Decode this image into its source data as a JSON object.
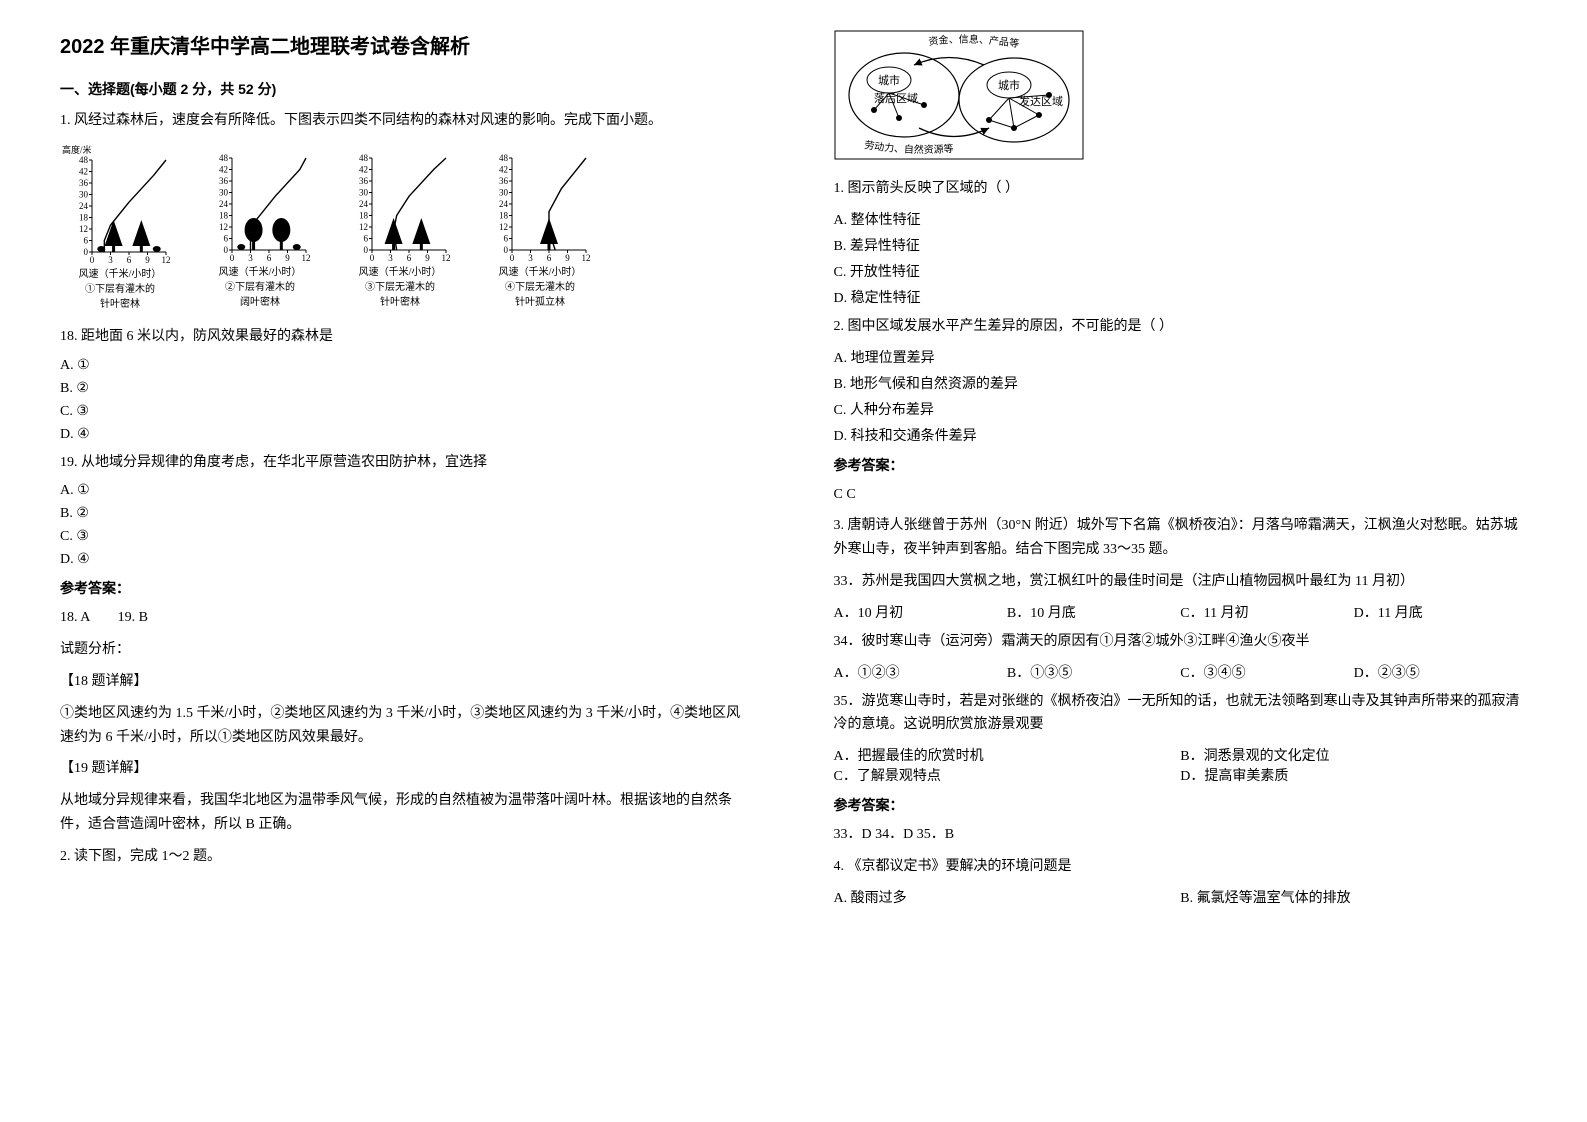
{
  "title": "2022 年重庆清华中学高二地理联考试卷含解析",
  "section1": {
    "heading": "一、选择题(每小题 2 分，共 52 分)",
    "q1": {
      "stem": "1. 风经过森林后，速度会有所降低。下图表示四类不同结构的森林对风速的影响。完成下面小题。",
      "charts": {
        "ylabel": "高度/米",
        "yticks": [
          "48",
          "42",
          "36",
          "30",
          "24",
          "18",
          "12",
          "6",
          "0"
        ],
        "xlabel": "风速（千米/小时）",
        "xticks": [
          "0",
          "3",
          "6",
          "9",
          "12"
        ],
        "items": [
          {
            "caption1": "①下层有灌木的",
            "caption2": "针叶密林",
            "curve": [
              [
                2,
                0
              ],
              [
                2,
                6
              ],
              [
                3,
                14
              ],
              [
                6,
                26
              ],
              [
                10,
                40
              ],
              [
                12,
                48
              ]
            ],
            "tree": "conifer-dense-shrub"
          },
          {
            "caption1": "②下层有灌木的",
            "caption2": "阔叶密林",
            "curve": [
              [
                3,
                0
              ],
              [
                3,
                8
              ],
              [
                4,
                16
              ],
              [
                7,
                28
              ],
              [
                11,
                42
              ],
              [
                12,
                48
              ]
            ],
            "tree": "broadleaf-dense-shrub"
          },
          {
            "caption1": "③下层无灌木的",
            "caption2": "针叶密林",
            "curve": [
              [
                4,
                0
              ],
              [
                3.5,
                10
              ],
              [
                4,
                18
              ],
              [
                6,
                28
              ],
              [
                10,
                42
              ],
              [
                12,
                48
              ]
            ],
            "tree": "conifer-dense"
          },
          {
            "caption1": "④下层无灌木的",
            "caption2": "针叶孤立林",
            "curve": [
              [
                7,
                0
              ],
              [
                6,
                10
              ],
              [
                6,
                20
              ],
              [
                8,
                32
              ],
              [
                11,
                44
              ],
              [
                12,
                48
              ]
            ],
            "tree": "conifer-sparse"
          }
        ],
        "axis_fontsize": 9,
        "line_color": "#000000",
        "tree_color": "#000000",
        "bg": "#ffffff"
      },
      "q18": "18.  距地面 6 米以内，防风效果最好的森林是",
      "opts18": {
        "A": "A.  ①",
        "B": "B.  ②",
        "C": "C.  ③",
        "D": "D.  ④"
      },
      "q19": "19.  从地域分异规律的角度考虑，在华北平原营造农田防护林，宜选择",
      "opts19": {
        "A": "A.  ①",
        "B": "B.  ②",
        "C": "C.  ③",
        "D": "D.  ④"
      },
      "answer_label": "参考答案：",
      "answer_line": "18. A        19. B",
      "analysis_label": "试题分析：",
      "detail18_label": "【18 题详解】",
      "detail18_text": "①类地区风速约为 1.5 千米/小时，②类地区风速约为 3 千米/小时，③类地区风速约为 3 千米/小时，④类地区风速约为 6 千米/小时，所以①类地区防风效果最好。",
      "detail19_label": "【19 题详解】",
      "detail19_text": "从地域分异规律来看，我国华北地区为温带季风气候，形成的自然植被为温带落叶阔叶林。根据该地的自然条件，适合营造阔叶密林，所以 B 正确。"
    },
    "q2": {
      "stem": "2. 读下图，完成 1～2 题。"
    }
  },
  "right": {
    "diagram": {
      "label_top": "资金、信息、产品等",
      "label_bottom": "劳动力、自然资源等",
      "label_city": "城市",
      "label_backward": "落后区域",
      "label_developed": "发达区域",
      "label_city2": "城市",
      "node_fill": "#ffffff",
      "node_stroke": "#000000",
      "arrow_color": "#000000"
    },
    "rq1": {
      "stem": "1. 图示箭头反映了区域的（      ）",
      "A": "A. 整体性特征",
      "B": "B. 差异性特征",
      "C": "C. 开放性特征",
      "D": "D. 稳定性特征"
    },
    "rq2": {
      "stem": "2. 图中区域发展水平产生差异的原因，不可能的是（     ）",
      "A": "A. 地理位置差异",
      "B": "B. 地形气候和自然资源的差异",
      "C": "C. 人种分布差异",
      "D": "D. 科技和交通条件差异"
    },
    "ans12_label": "参考答案：",
    "ans12": "C  C",
    "q3": {
      "stem": "3. 唐朝诗人张继曾于苏州（30°N 附近）城外写下名篇《枫桥夜泊》：月落乌啼霜满天，江枫渔火对愁眠。姑苏城外寒山寺，夜半钟声到客船。结合下图完成 33～35 题。",
      "q33": "33．苏州是我国四大赏枫之地，赏江枫红叶的最佳时间是（注庐山植物园枫叶最红为 11 月初）",
      "opts33": {
        "A": "A．10 月初",
        "B": "B．10 月底",
        "C": "C．11 月初",
        "D": "D．11 月底"
      },
      "q34": "34．彼时寒山寺（运河旁）霜满天的原因有①月落②城外③江畔④渔火⑤夜半",
      "opts34": {
        "A": "A．①②③",
        "B": "B．①③⑤",
        "C": "C．③④⑤",
        "D": "D．②③⑤"
      },
      "q35": "35．游览寒山寺时，若是对张继的《枫桥夜泊》一无所知的话，也就无法领略到寒山寺及其钟声所带来的孤寂清冷的意境。这说明欣赏旅游景观要",
      "opts35": {
        "A": "A．把握最佳的欣赏时机",
        "B": "B．洞悉景观的文化定位",
        "C": "C．了解景观特点",
        "D": "D．提高审美素质"
      },
      "answer_label": "参考答案：",
      "answer": "33．D 34．D 35．B"
    },
    "q4": {
      "stem": "4. 《京都议定书》要解决的环境问题是",
      "A": "A. 酸雨过多",
      "B": "B. 氟氯烃等温室气体的排放"
    }
  }
}
